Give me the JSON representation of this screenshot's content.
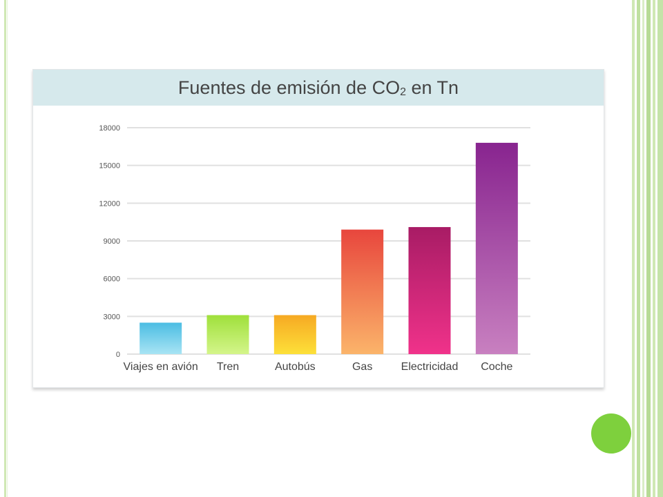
{
  "chart_data": {
    "type": "bar",
    "title_main": "Fuentes de emisión de CO",
    "title_sub": "2",
    "title_tail": " en Tn",
    "xlabel": "",
    "ylabel": "",
    "ylim": [
      0,
      18000
    ],
    "yticks": [
      "0",
      "3000",
      "6000",
      "9000",
      "12000",
      "15000",
      "18000"
    ],
    "categories": [
      "Viajes en avión",
      "Tren",
      "Autobús",
      "Gas",
      "Electricidad",
      "Coche"
    ],
    "values": [
      2500,
      3100,
      3100,
      9900,
      10100,
      16800
    ],
    "grid": true,
    "bar_colors": [
      [
        "#4cbde3",
        "#a8e4f4"
      ],
      [
        "#9fe03b",
        "#d4f58a"
      ],
      [
        "#f6a923",
        "#fde039"
      ],
      [
        "#e8463d",
        "#fbb46a"
      ],
      [
        "#a81c65",
        "#f0328a"
      ],
      [
        "#88248f",
        "#c880c0"
      ]
    ]
  },
  "decor": {
    "accent_green": "#7ed03d",
    "border_green": "#cfe8b4",
    "header_bg": "#d6e9ec"
  }
}
